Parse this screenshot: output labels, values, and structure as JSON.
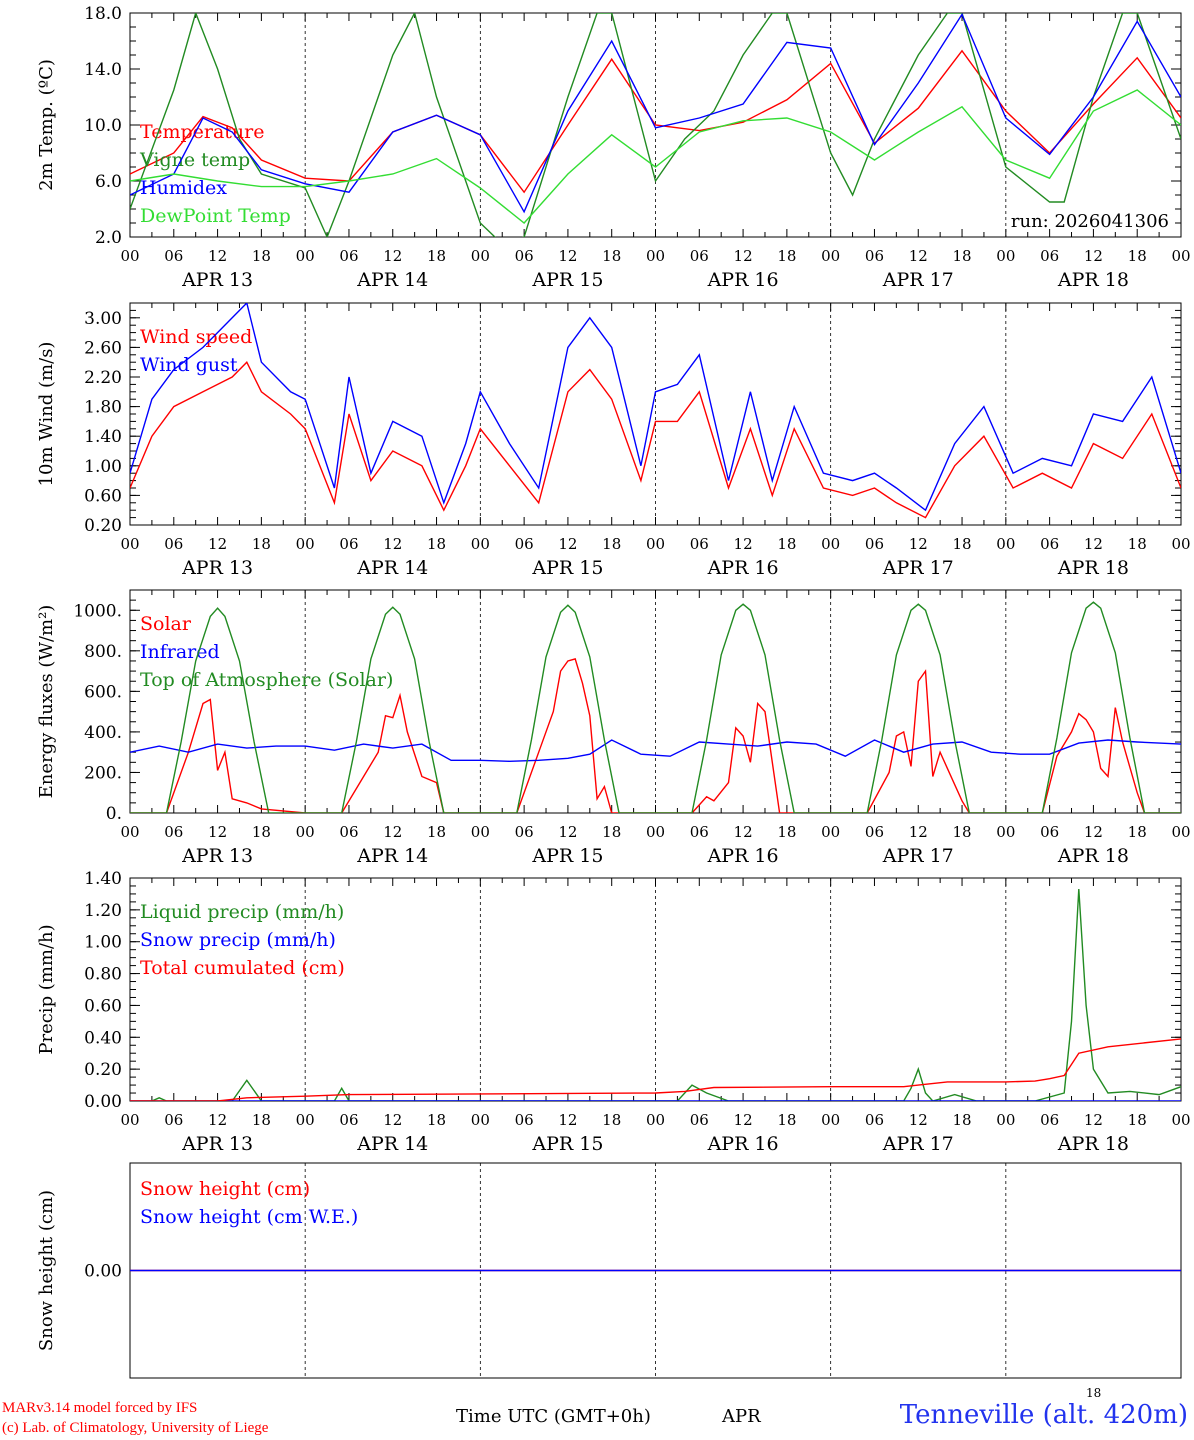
{
  "chart_data": [
    {
      "type": "line",
      "ylabel": "2m Temp. (ºC)",
      "ylim": [
        2,
        18
      ],
      "yticks": [
        "2.0",
        "6.0",
        "10.0",
        "14.0",
        "18.0"
      ],
      "yvalues": [
        2,
        6,
        10,
        14,
        18
      ],
      "annotation": "run: 2026041306",
      "series": [
        {
          "name": "Temperature",
          "color": "#ff0000",
          "x": [
            0,
            6,
            10,
            14,
            18,
            24,
            30,
            36,
            42,
            48,
            54,
            60,
            66,
            72,
            78,
            84,
            90,
            96,
            102,
            108,
            114,
            120,
            126,
            132,
            138,
            144
          ],
          "values": [
            6.5,
            8.0,
            10.6,
            9.8,
            7.5,
            6.2,
            6.0,
            9.5,
            10.7,
            9.3,
            5.2,
            10.0,
            14.7,
            10.0,
            9.6,
            10.2,
            11.8,
            14.4,
            8.7,
            11.2,
            15.3,
            11.0,
            8.0,
            11.5,
            14.8,
            10.5
          ]
        },
        {
          "name": "Vigne temp",
          "color": "#228b22",
          "x": [
            0,
            6,
            9,
            12,
            15,
            18,
            24,
            27,
            30,
            36,
            39,
            42,
            48,
            51,
            54,
            60,
            64,
            66,
            72,
            76,
            80,
            84,
            88,
            90,
            96,
            99,
            102,
            108,
            112,
            114,
            120,
            126,
            128,
            132,
            136,
            138,
            144
          ],
          "values": [
            4.0,
            12.5,
            18,
            14.0,
            9.0,
            6.5,
            5.5,
            2.0,
            6.0,
            15,
            18,
            12.0,
            3.0,
            1.5,
            2.0,
            12,
            18,
            18,
            6.0,
            9.0,
            11,
            15.0,
            18,
            18,
            8.0,
            5.0,
            9.0,
            15.0,
            18,
            18,
            7.0,
            4.5,
            4.5,
            12,
            18,
            18,
            9.0
          ]
        },
        {
          "name": "Humidex",
          "color": "#0000ff",
          "x": [
            0,
            6,
            10,
            14,
            18,
            24,
            30,
            36,
            42,
            48,
            54,
            60,
            66,
            72,
            78,
            84,
            90,
            96,
            102,
            108,
            114,
            120,
            126,
            132,
            138,
            144
          ],
          "values": [
            5.0,
            6.5,
            10.5,
            9.5,
            6.8,
            5.8,
            5.2,
            9.5,
            10.7,
            9.3,
            3.8,
            11.0,
            16.0,
            9.8,
            10.5,
            11.5,
            15.9,
            15.5,
            8.6,
            13.0,
            17.9,
            10.5,
            7.9,
            12.0,
            17.4,
            12.0
          ]
        },
        {
          "name": "DewPoint Temp",
          "color": "#33dd33",
          "x": [
            0,
            6,
            12,
            18,
            24,
            30,
            36,
            42,
            48,
            54,
            60,
            66,
            72,
            78,
            84,
            90,
            96,
            102,
            108,
            114,
            120,
            126,
            132,
            138,
            144
          ],
          "values": [
            6.0,
            6.5,
            6.0,
            5.6,
            5.6,
            6.0,
            6.5,
            7.6,
            5.5,
            3.0,
            6.5,
            9.3,
            7.0,
            9.5,
            10.3,
            10.5,
            9.5,
            7.5,
            9.5,
            11.3,
            7.5,
            6.2,
            11.0,
            12.5,
            10.0
          ]
        }
      ]
    },
    {
      "type": "line",
      "ylabel": "10m Wind (m/s)",
      "ylim": [
        0.2,
        3.2
      ],
      "yticks": [
        "0.20",
        "0.60",
        "1.00",
        "1.40",
        "1.80",
        "2.20",
        "2.60",
        "3.00"
      ],
      "yvalues": [
        0.2,
        0.6,
        1.0,
        1.4,
        1.8,
        2.2,
        2.6,
        3.0
      ],
      "series": [
        {
          "name": "Wind speed",
          "color": "#ff0000",
          "x": [
            0,
            3,
            6,
            10,
            14,
            16,
            18,
            22,
            24,
            28,
            30,
            33,
            36,
            40,
            43,
            46,
            48,
            52,
            56,
            60,
            63,
            66,
            70,
            72,
            75,
            78,
            82,
            85,
            88,
            91,
            95,
            99,
            102,
            105,
            109,
            113,
            117,
            121,
            125,
            129,
            132,
            136,
            140,
            144
          ],
          "values": [
            0.7,
            1.4,
            1.8,
            2.0,
            2.2,
            2.4,
            2.0,
            1.7,
            1.5,
            0.5,
            1.7,
            0.8,
            1.2,
            1.0,
            0.4,
            1.0,
            1.5,
            1.0,
            0.5,
            2.0,
            2.3,
            1.9,
            0.8,
            1.6,
            1.6,
            2.0,
            0.7,
            1.5,
            0.6,
            1.5,
            0.7,
            0.6,
            0.7,
            0.5,
            0.3,
            1.0,
            1.4,
            0.7,
            0.9,
            0.7,
            1.3,
            1.1,
            1.7,
            0.7
          ]
        },
        {
          "name": "Wind gust",
          "color": "#0000ff",
          "x": [
            0,
            3,
            6,
            10,
            14,
            16,
            18,
            22,
            24,
            28,
            30,
            33,
            36,
            40,
            43,
            46,
            48,
            52,
            56,
            60,
            63,
            66,
            70,
            72,
            75,
            78,
            82,
            85,
            88,
            91,
            95,
            99,
            102,
            105,
            109,
            113,
            117,
            121,
            125,
            129,
            132,
            136,
            140,
            144
          ],
          "values": [
            0.9,
            1.9,
            2.3,
            2.6,
            3.0,
            3.2,
            2.4,
            2.0,
            1.9,
            0.7,
            2.2,
            0.9,
            1.6,
            1.4,
            0.5,
            1.3,
            2.0,
            1.3,
            0.7,
            2.6,
            3.0,
            2.6,
            1.0,
            2.0,
            2.1,
            2.5,
            0.8,
            2.0,
            0.8,
            1.8,
            0.9,
            0.8,
            0.9,
            0.7,
            0.4,
            1.3,
            1.8,
            0.9,
            1.1,
            1.0,
            1.7,
            1.6,
            2.2,
            0.9
          ]
        }
      ]
    },
    {
      "type": "line",
      "ylabel": "Energy fluxes (W/m²)",
      "ylim": [
        0,
        1100
      ],
      "yticks": [
        "0.",
        "200.",
        "400.",
        "600.",
        "800.",
        "1000."
      ],
      "yvalues": [
        0,
        200,
        400,
        600,
        800,
        1000
      ],
      "series": [
        {
          "name": "Solar",
          "color": "#ff0000",
          "x": [
            0,
            5,
            8,
            10,
            11,
            12,
            13,
            14,
            16,
            18,
            24,
            29,
            32,
            34,
            35,
            36,
            37,
            38,
            40,
            42,
            43,
            48,
            53,
            56,
            58,
            59,
            60,
            61,
            62,
            63,
            64,
            65,
            66,
            67,
            72,
            77,
            79,
            80,
            82,
            83,
            84,
            85,
            86,
            87,
            89,
            91,
            96,
            101,
            104,
            105,
            106,
            107,
            108,
            109,
            110,
            111,
            112,
            114,
            115,
            120,
            125,
            127,
            129,
            130,
            131,
            132,
            133,
            134,
            135,
            136,
            138,
            139,
            144
          ],
          "values": [
            0,
            0,
            300,
            540,
            560,
            210,
            300,
            70,
            50,
            20,
            0,
            0,
            180,
            300,
            480,
            470,
            580,
            400,
            180,
            150,
            0,
            0,
            0,
            300,
            500,
            700,
            750,
            760,
            640,
            480,
            70,
            130,
            0,
            0,
            0,
            0,
            80,
            60,
            150,
            420,
            380,
            250,
            540,
            500,
            0,
            0,
            0,
            0,
            200,
            380,
            400,
            230,
            650,
            700,
            180,
            300,
            220,
            60,
            0,
            0,
            0,
            280,
            400,
            490,
            460,
            400,
            220,
            180,
            520,
            350,
            100,
            0,
            0
          ]
        },
        {
          "name": "Infrared",
          "color": "#0000ff",
          "x": [
            0,
            4,
            8,
            12,
            16,
            20,
            24,
            28,
            32,
            36,
            40,
            44,
            48,
            52,
            56,
            60,
            63,
            66,
            70,
            74,
            78,
            82,
            86,
            90,
            94,
            98,
            102,
            106,
            110,
            114,
            118,
            122,
            126,
            130,
            134,
            138,
            144
          ],
          "values": [
            300,
            330,
            300,
            340,
            320,
            330,
            330,
            310,
            340,
            320,
            340,
            260,
            260,
            255,
            260,
            270,
            290,
            360,
            290,
            280,
            350,
            340,
            330,
            350,
            340,
            280,
            360,
            300,
            340,
            350,
            300,
            290,
            290,
            345,
            360,
            350,
            340
          ]
        },
        {
          "name": "Top of Atmosphere (Solar)",
          "color": "#228b22",
          "x": [
            0,
            5,
            7,
            9,
            11,
            12,
            13,
            15,
            17,
            19,
            24,
            29,
            31,
            33,
            35,
            36,
            37,
            39,
            41,
            43,
            48,
            53,
            55,
            57,
            59,
            60,
            61,
            63,
            65,
            67,
            72,
            77,
            79,
            81,
            83,
            84,
            85,
            87,
            89,
            91,
            96,
            101,
            103,
            105,
            107,
            108,
            109,
            111,
            113,
            115,
            120,
            125,
            127,
            129,
            131,
            132,
            133,
            135,
            137,
            139,
            144
          ],
          "values": [
            0,
            0,
            350,
            750,
            970,
            1010,
            970,
            750,
            350,
            0,
            0,
            0,
            350,
            760,
            980,
            1015,
            980,
            760,
            350,
            0,
            0,
            0,
            360,
            770,
            990,
            1025,
            990,
            770,
            360,
            0,
            0,
            0,
            360,
            780,
            1000,
            1030,
            1000,
            780,
            360,
            0,
            0,
            0,
            360,
            780,
            1000,
            1030,
            1000,
            780,
            360,
            0,
            0,
            0,
            370,
            790,
            1010,
            1040,
            1010,
            790,
            370,
            0,
            0
          ]
        }
      ]
    },
    {
      "type": "line",
      "ylabel": "Precip (mm/h)",
      "ylim": [
        0,
        1.4
      ],
      "yticks": [
        "0.00",
        "0.20",
        "0.40",
        "0.60",
        "0.80",
        "1.00",
        "1.20",
        "1.40"
      ],
      "yvalues": [
        0,
        0.2,
        0.4,
        0.6,
        0.8,
        1.0,
        1.2,
        1.4
      ],
      "series": [
        {
          "name": "Liquid precip (mm/h)",
          "color": "#228b22",
          "x": [
            0,
            3,
            4,
            5,
            14,
            16,
            18,
            24,
            28,
            29,
            30,
            72,
            75,
            77,
            79,
            82,
            96,
            106,
            107,
            108,
            109,
            110,
            113,
            116,
            124,
            128,
            129,
            130,
            131,
            132,
            134,
            137,
            141,
            144
          ],
          "values": [
            0,
            0,
            0.02,
            0,
            0,
            0.13,
            0,
            0,
            0,
            0.08,
            0,
            0,
            0,
            0.1,
            0.05,
            0,
            0,
            0,
            0.08,
            0.2,
            0.05,
            0,
            0.04,
            0,
            0,
            0.05,
            0.5,
            1.33,
            0.6,
            0.2,
            0.05,
            0.06,
            0.04,
            0.09
          ]
        },
        {
          "name": "Snow precip (mm/h)",
          "color": "#0000ff",
          "x": [
            0,
            144
          ],
          "values": [
            0,
            0
          ]
        },
        {
          "name": "Total cumulated (cm)",
          "color": "#ff0000",
          "x": [
            0,
            12,
            16,
            24,
            30,
            72,
            76,
            80,
            96,
            106,
            108,
            112,
            120,
            124,
            126,
            128,
            130,
            134,
            144
          ],
          "values": [
            0,
            0,
            0.02,
            0.03,
            0.04,
            0.05,
            0.06,
            0.085,
            0.09,
            0.09,
            0.1,
            0.12,
            0.12,
            0.125,
            0.14,
            0.16,
            0.3,
            0.34,
            0.39
          ]
        }
      ]
    },
    {
      "type": "line",
      "ylabel": "Snow height (cm)",
      "ylim": [
        -1,
        1
      ],
      "yticks": [
        "0.00"
      ],
      "yvalues": [
        0
      ],
      "series": [
        {
          "name": "Snow height (cm)",
          "color": "#ff0000",
          "x": [
            0,
            144
          ],
          "values": [
            0,
            0
          ]
        },
        {
          "name": "Snow height (cm W.E.)",
          "color": "#0000ff",
          "x": [
            0,
            144
          ],
          "values": [
            0,
            0
          ]
        }
      ]
    }
  ],
  "xaxis": {
    "range_hours": [
      0,
      144
    ],
    "hour_labels": [
      "00",
      "06",
      "12",
      "18"
    ],
    "day_labels": [
      "APR 13",
      "APR 14",
      "APR 15",
      "APR 16",
      "APR 17",
      "APR 18"
    ]
  },
  "footer": {
    "model_line1": "MARv3.14 model forced by IFS",
    "model_line2": "(c) Lab. of Climatology, University of Liege",
    "time_label": "Time UTC (GMT+0h)",
    "month": "APR",
    "day": "18",
    "station": "Tenneville (alt. 420m)"
  }
}
